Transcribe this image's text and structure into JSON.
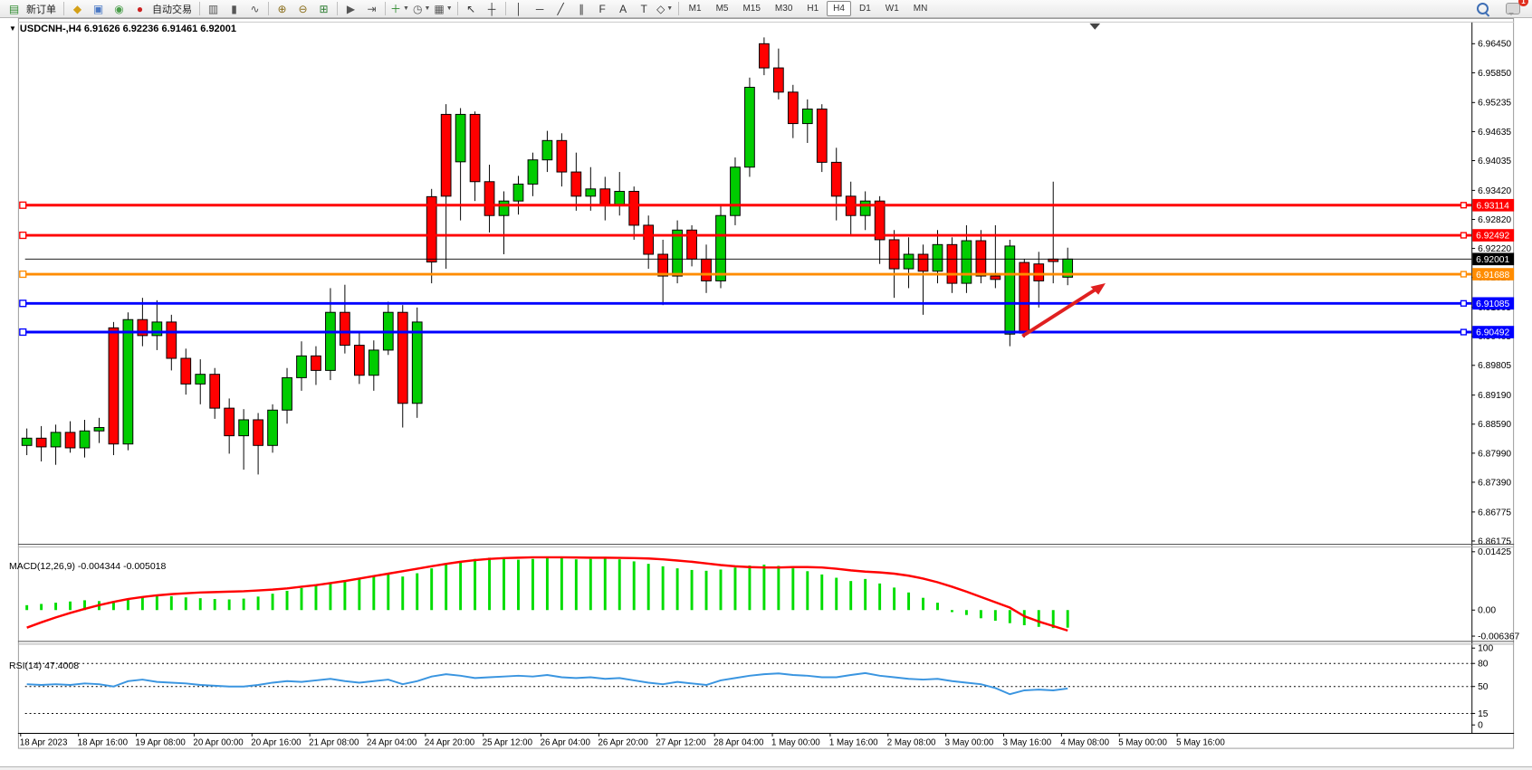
{
  "toolbar": {
    "new_order_label": "新订单",
    "autotrading_label": "自动交易",
    "icon_buttons": [
      {
        "name": "new-order",
        "glyph": "▤",
        "color": "#2e8b2e",
        "label": "新订单"
      },
      {
        "sep": true
      },
      {
        "name": "styler",
        "glyph": "◆",
        "color": "#d4a017"
      },
      {
        "name": "market-watch",
        "glyph": "▣",
        "color": "#4a78c4"
      },
      {
        "name": "data-signal",
        "glyph": "◉",
        "color": "#4a9e4a"
      },
      {
        "name": "autotrading",
        "glyph": "●",
        "color": "#cc2222",
        "label": "自动交易"
      },
      {
        "sep": true
      },
      {
        "name": "bar-chart",
        "glyph": "▥",
        "color": "#555555"
      },
      {
        "name": "candlestick-chart",
        "glyph": "▮",
        "color": "#555555"
      },
      {
        "name": "line-chart",
        "glyph": "∿",
        "color": "#555555"
      },
      {
        "sep": true
      },
      {
        "name": "zoom-in",
        "glyph": "⊕",
        "color": "#8a6d1a"
      },
      {
        "name": "zoom-out",
        "glyph": "⊖",
        "color": "#8a6d1a"
      },
      {
        "name": "tile-windows",
        "glyph": "⊞",
        "color": "#2e7d32"
      },
      {
        "sep": true
      },
      {
        "name": "auto-scroll",
        "glyph": "▶",
        "color": "#555555"
      },
      {
        "name": "chart-shift",
        "glyph": "⇥",
        "color": "#555555"
      },
      {
        "sep": true
      },
      {
        "name": "indicators",
        "glyph": "＋",
        "color": "#2e8b2e",
        "caret": true
      },
      {
        "name": "periods",
        "glyph": "◷",
        "color": "#555555",
        "caret": true
      },
      {
        "name": "templates",
        "glyph": "▦",
        "color": "#555555",
        "caret": true
      },
      {
        "sep": true
      },
      {
        "name": "cursor",
        "glyph": "↖",
        "color": "#333333"
      },
      {
        "name": "crosshair",
        "glyph": "┼",
        "color": "#333333"
      },
      {
        "sep": true
      },
      {
        "name": "vertical-line",
        "glyph": "│",
        "color": "#333333"
      },
      {
        "name": "horizontal-line",
        "glyph": "─",
        "color": "#333333"
      },
      {
        "name": "trendline",
        "glyph": "╱",
        "color": "#333333"
      },
      {
        "name": "equidistant-channel",
        "glyph": "∥",
        "color": "#333333"
      },
      {
        "name": "fibonacci",
        "glyph": "F",
        "color": "#333333"
      },
      {
        "name": "text",
        "glyph": "A",
        "color": "#333333"
      },
      {
        "name": "text-label",
        "glyph": "T",
        "color": "#333333"
      },
      {
        "name": "shapes",
        "glyph": "◇",
        "color": "#333333",
        "caret": true
      },
      {
        "sep": true
      }
    ],
    "timeframes": [
      "M1",
      "M5",
      "M15",
      "M30",
      "H1",
      "H4",
      "D1",
      "W1",
      "MN"
    ],
    "active_timeframe": "H4",
    "notification_count": "1"
  },
  "header": {
    "title_overlay": "USDCNH-,H4  6.91626 6.92236 6.91461 6.92001",
    "symbol": "USDCNH-",
    "timeframe": "H4",
    "open": "6.91626",
    "high": "6.92236",
    "low": "6.91461",
    "close": "6.92001"
  },
  "chart_data": {
    "type": "candlestick",
    "symbol": "USDCNH-",
    "timeframe": "H4",
    "title": "USDCNH-,H4 6.91626 6.92236 6.91461 6.92001",
    "ylim": [
      6.86175,
      6.9645
    ],
    "grid": false,
    "colors": {
      "up": "#00CC00",
      "down": "#FF0000",
      "wick": "#000000",
      "macd_hist": "#00DD00",
      "macd_signal": "#FF0000",
      "rsi_line": "#3A95E0",
      "arrow": "#E02020"
    },
    "bars": [
      [
        6.8815,
        6.885,
        6.8795,
        6.883
      ],
      [
        6.883,
        6.8855,
        6.8782,
        6.8812
      ],
      [
        6.8812,
        6.8858,
        6.8775,
        6.8842
      ],
      [
        6.8842,
        6.8865,
        6.88,
        6.881
      ],
      [
        6.881,
        6.8868,
        6.879,
        6.8845
      ],
      [
        6.8845,
        6.8872,
        6.882,
        6.8852
      ],
      [
        6.9058,
        6.907,
        6.8795,
        6.8818
      ],
      [
        6.8818,
        6.909,
        6.8805,
        6.9075
      ],
      [
        6.9075,
        6.912,
        6.902,
        6.9042
      ],
      [
        6.9042,
        6.9115,
        6.9012,
        6.907
      ],
      [
        6.907,
        6.9085,
        6.897,
        6.8995
      ],
      [
        6.8995,
        6.9015,
        6.892,
        6.8942
      ],
      [
        6.8942,
        6.8993,
        6.89,
        6.8962
      ],
      [
        6.8962,
        6.8975,
        6.887,
        6.8892
      ],
      [
        6.8892,
        6.8912,
        6.8798,
        6.8835
      ],
      [
        6.8835,
        6.889,
        6.8765,
        6.8868
      ],
      [
        6.8868,
        6.8882,
        6.8755,
        6.8815
      ],
      [
        6.8815,
        6.89,
        6.88,
        6.8888
      ],
      [
        6.8888,
        6.8975,
        6.886,
        6.8955
      ],
      [
        6.8955,
        6.903,
        6.8928,
        6.9
      ],
      [
        6.9,
        6.902,
        6.894,
        6.897
      ],
      [
        6.897,
        6.914,
        6.895,
        6.909
      ],
      [
        6.909,
        6.9147,
        6.9005,
        6.9022
      ],
      [
        6.9022,
        6.9048,
        6.8942,
        6.896
      ],
      [
        6.896,
        6.9032,
        6.8928,
        6.9012
      ],
      [
        6.9012,
        6.9112,
        6.9002,
        6.909
      ],
      [
        6.909,
        6.9105,
        6.8852,
        6.8902
      ],
      [
        6.8902,
        6.91,
        6.8872,
        6.907
      ],
      [
        6.9329,
        6.9345,
        6.915,
        6.9194
      ],
      [
        6.9499,
        6.952,
        6.918,
        6.933
      ],
      [
        6.9401,
        6.9512,
        6.928,
        6.9499
      ],
      [
        6.9499,
        6.9505,
        6.932,
        6.936
      ],
      [
        6.936,
        6.9395,
        6.9255,
        6.929
      ],
      [
        6.929,
        6.934,
        6.921,
        6.932
      ],
      [
        6.932,
        6.9372,
        6.9292,
        6.9355
      ],
      [
        6.9355,
        6.942,
        6.933,
        6.9405
      ],
      [
        6.9405,
        6.9465,
        6.938,
        6.9445
      ],
      [
        6.9445,
        6.946,
        6.935,
        6.938
      ],
      [
        6.938,
        6.942,
        6.93,
        6.933
      ],
      [
        6.933,
        6.939,
        6.93,
        6.9345
      ],
      [
        6.9345,
        6.937,
        6.928,
        6.931
      ],
      [
        6.931,
        6.938,
        6.929,
        6.934
      ],
      [
        6.934,
        6.935,
        6.924,
        6.927
      ],
      [
        6.927,
        6.929,
        6.918,
        6.921
      ],
      [
        6.921,
        6.924,
        6.9105,
        6.9165
      ],
      [
        6.9165,
        6.928,
        6.915,
        6.926
      ],
      [
        6.926,
        6.927,
        6.9185,
        6.92
      ],
      [
        6.92,
        6.923,
        6.913,
        6.9155
      ],
      [
        6.9155,
        6.931,
        6.914,
        6.929
      ],
      [
        6.929,
        6.941,
        6.927,
        6.939
      ],
      [
        6.939,
        6.9575,
        6.937,
        6.9555
      ],
      [
        6.9645,
        6.9658,
        6.958,
        6.9595
      ],
      [
        6.9595,
        6.9635,
        6.953,
        6.9545
      ],
      [
        6.9545,
        6.956,
        6.945,
        6.948
      ],
      [
        6.948,
        6.953,
        6.944,
        6.951
      ],
      [
        6.951,
        6.952,
        6.938,
        6.94
      ],
      [
        6.94,
        6.943,
        6.928,
        6.933
      ],
      [
        6.933,
        6.936,
        6.925,
        6.929
      ],
      [
        6.929,
        6.934,
        6.926,
        6.932
      ],
      [
        6.932,
        6.933,
        6.919,
        6.924
      ],
      [
        6.924,
        6.926,
        6.912,
        6.918
      ],
      [
        6.918,
        6.9245,
        6.914,
        6.921
      ],
      [
        6.921,
        6.923,
        6.9085,
        6.9175
      ],
      [
        6.9175,
        6.926,
        6.915,
        6.923
      ],
      [
        6.923,
        6.9245,
        6.913,
        6.915
      ],
      [
        6.915,
        6.927,
        6.913,
        6.9238
      ],
      [
        6.9238,
        6.926,
        6.915,
        6.9165
      ],
      [
        6.9165,
        6.927,
        6.914,
        6.9158
      ],
      [
        6.9045,
        6.924,
        6.902,
        6.9227
      ],
      [
        6.9193,
        6.92,
        6.9038,
        6.9047
      ],
      [
        6.919,
        6.9215,
        6.91,
        6.9155
      ],
      [
        6.92,
        6.936,
        6.915,
        6.9195
      ],
      [
        6.91626,
        6.92236,
        6.91461,
        6.92001
      ]
    ],
    "price_ticks": [
      {
        "t": "6.96450",
        "v": 6.9645
      },
      {
        "t": "6.95850",
        "v": 6.9585
      },
      {
        "t": "6.95235",
        "v": 6.95235
      },
      {
        "t": "6.94635",
        "v": 6.94635
      },
      {
        "t": "6.94035",
        "v": 6.94035
      },
      {
        "t": "6.93420",
        "v": 6.9342
      },
      {
        "t": "6.92820",
        "v": 6.9282
      },
      {
        "t": "6.92220",
        "v": 6.9222
      },
      {
        "t": "6.91620",
        "v": 6.9162
      },
      {
        "t": "6.91005",
        "v": 6.91005
      },
      {
        "t": "6.90405",
        "v": 6.90405
      },
      {
        "t": "6.89805",
        "v": 6.89805
      },
      {
        "t": "6.89190",
        "v": 6.8919
      },
      {
        "t": "6.88590",
        "v": 6.8859
      },
      {
        "t": "6.87990",
        "v": 6.8799
      },
      {
        "t": "6.87390",
        "v": 6.8739
      },
      {
        "t": "6.86775",
        "v": 6.86775
      },
      {
        "t": "6.86175",
        "v": 6.86175
      }
    ],
    "hlines": [
      {
        "price": 6.93114,
        "label": "6.93114",
        "color": "#FF0000",
        "width": 3
      },
      {
        "price": 6.92492,
        "label": "6.92492",
        "color": "#FF0000",
        "width": 3
      },
      {
        "price": 6.92001,
        "label": "6.92001",
        "color": "#000000",
        "width": 1,
        "current": true
      },
      {
        "price": 6.91688,
        "label": "6.91688",
        "color": "#FF8C00",
        "width": 3
      },
      {
        "price": 6.91085,
        "label": "6.91085",
        "color": "#0000FF",
        "width": 3
      },
      {
        "price": 6.90492,
        "label": "6.90492",
        "color": "#0000FF",
        "width": 3
      }
    ],
    "time_labels": [
      "18 Apr 2023",
      "18 Apr 16:00",
      "19 Apr 08:00",
      "20 Apr 00:00",
      "20 Apr 16:00",
      "21 Apr 08:00",
      "24 Apr 04:00",
      "24 Apr 20:00",
      "25 Apr 12:00",
      "26 Apr 04:00",
      "26 Apr 20:00",
      "27 Apr 12:00",
      "28 Apr 04:00",
      "1 May 00:00",
      "1 May 16:00",
      "2 May 08:00",
      "3 May 00:00",
      "3 May 16:00",
      "4 May 08:00",
      "5 May 00:00",
      "5 May 16:00"
    ],
    "macd": {
      "label": "MACD(12,26,9) -0.004344 -0.005018",
      "params": "12,26,9",
      "main_value": "-0.004344",
      "signal_value": "-0.005018",
      "scale": 0.001,
      "axis": [
        {
          "t": "0.01425",
          "v": 0.01425
        },
        {
          "t": "0.00",
          "v": 0
        },
        {
          "t": "-0.006367",
          "v": -0.006367
        }
      ],
      "histogram": [
        1.2,
        1.5,
        1.8,
        2.1,
        2.4,
        2.2,
        2.0,
        2.6,
        3.2,
        3.6,
        3.4,
        3.1,
        2.9,
        2.7,
        2.6,
        2.8,
        3.3,
        4.0,
        4.7,
        5.4,
        6.1,
        6.8,
        7.3,
        7.7,
        8.3,
        8.9,
        8.2,
        9.0,
        10.2,
        11.2,
        12.0,
        12.5,
        12.8,
        12.6,
        12.3,
        12.5,
        12.8,
        12.7,
        12.4,
        12.5,
        12.7,
        12.4,
        11.9,
        11.3,
        10.7,
        10.2,
        9.8,
        9.6,
        9.9,
        10.4,
        10.9,
        11.1,
        10.8,
        10.2,
        9.5,
        8.7,
        7.9,
        7.1,
        7.6,
        6.5,
        5.5,
        4.3,
        3.0,
        1.8,
        -0.5,
        -1.2,
        -2.0,
        -2.6,
        -3.2,
        -3.7,
        -4.1,
        -4.4,
        -4.3
      ],
      "signal": [
        -4.3,
        -3.0,
        -1.8,
        -0.7,
        0.3,
        1.2,
        2.0,
        2.7,
        3.2,
        3.6,
        3.9,
        4.1,
        4.3,
        4.4,
        4.5,
        4.6,
        4.8,
        5.0,
        5.3,
        5.7,
        6.1,
        6.6,
        7.1,
        7.7,
        8.3,
        8.9,
        9.5,
        10.1,
        10.7,
        11.3,
        11.8,
        12.2,
        12.5,
        12.7,
        12.8,
        12.9,
        12.9,
        12.9,
        12.85,
        12.8,
        12.8,
        12.75,
        12.7,
        12.6,
        12.4,
        12.1,
        11.8,
        11.4,
        11.0,
        10.7,
        10.5,
        10.4,
        10.4,
        10.5,
        10.5,
        10.4,
        10.1,
        9.7,
        9.4,
        9.2,
        8.9,
        8.4,
        7.7,
        6.8,
        5.7,
        4.5,
        3.2,
        1.9,
        0.6,
        -1.5,
        -2.8,
        -3.9,
        -5.0
      ]
    },
    "rsi": {
      "label": "RSI(14) 47.4008",
      "period": "14",
      "value": "47.4008",
      "levels": [
        80,
        50,
        15
      ],
      "axis": [
        {
          "t": "100",
          "v": 100
        },
        {
          "t": "80",
          "v": 80
        },
        {
          "t": "50",
          "v": 50
        },
        {
          "t": "15",
          "v": 15
        },
        {
          "t": "0",
          "v": 0
        }
      ],
      "values": [
        53,
        52,
        53,
        52,
        54,
        53,
        50,
        57,
        59,
        56,
        55,
        54,
        52,
        51,
        50,
        50,
        52,
        55,
        57,
        56,
        58,
        60,
        57,
        55,
        57,
        59,
        53,
        57,
        63,
        66,
        64,
        61,
        62,
        63,
        64,
        63,
        65,
        62,
        61,
        62,
        60,
        61,
        58,
        55,
        53,
        56,
        54,
        52,
        58,
        61,
        64,
        66,
        67,
        65,
        64,
        62,
        62,
        65,
        67.5,
        64,
        62,
        60,
        59,
        60,
        57,
        55,
        53,
        48,
        40,
        45,
        46,
        45,
        47.4
      ]
    },
    "arrow": {
      "from": [
        1136,
        380
      ],
      "to": [
        1219,
        327
      ],
      "tip": [
        1230,
        320
      ]
    }
  }
}
